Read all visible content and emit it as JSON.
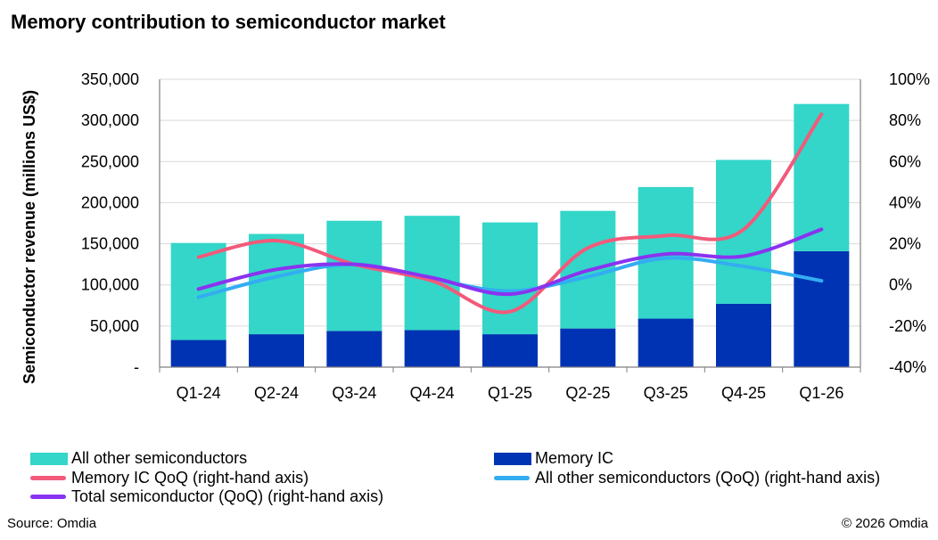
{
  "title": "Memory contribution to semiconductor market",
  "source": "Source: Omdia",
  "copyright": "© 2026 Omdia",
  "colors": {
    "all_other": "#33d6c8",
    "memory_ic": "#0033b3",
    "memory_qoq": "#f25a7a",
    "all_other_qoq": "#33adf2",
    "total_qoq": "#8a33f0",
    "grid": "#d9d9d9",
    "axis": "#808080"
  },
  "chart_data": {
    "type": "bar",
    "stacked": true,
    "ylabel": "Semiconductor revenue (millions US$)",
    "ylim": [
      0,
      350000
    ],
    "y_ticks": [
      0,
      50000,
      100000,
      150000,
      200000,
      250000,
      300000,
      350000
    ],
    "y_tick_labels": [
      "-",
      "50,000",
      "100,000",
      "150,000",
      "200,000",
      "250,000",
      "300,000",
      "350,000"
    ],
    "y2lim": [
      -40,
      100
    ],
    "y2_ticks": [
      -40,
      -20,
      0,
      20,
      40,
      60,
      80,
      100
    ],
    "y2_tick_labels": [
      "-40%",
      "-20%",
      "0%",
      "20%",
      "40%",
      "60%",
      "80%",
      "100%"
    ],
    "grid": true,
    "legend_position": "bottom",
    "categories": [
      "Q1-24",
      "Q2-24",
      "Q3-24",
      "Q4-24",
      "Q1-25",
      "Q2-25",
      "Q3-25",
      "Q4-25",
      "Q1-26"
    ],
    "series": [
      {
        "name": "All other semiconductors",
        "kind": "bar",
        "axis": "left",
        "values": [
          118000,
          122000,
          134000,
          139000,
          136000,
          143000,
          160000,
          175000,
          179000
        ]
      },
      {
        "name": "Memory IC",
        "kind": "bar",
        "axis": "left",
        "values": [
          33000,
          40000,
          44000,
          45000,
          40000,
          47000,
          59000,
          77000,
          141000
        ]
      },
      {
        "name": "Memory IC QoQ (right-hand axis)",
        "kind": "line",
        "axis": "right",
        "values": [
          13.5,
          21.5,
          10,
          2,
          -13,
          18,
          24,
          27,
          83
        ]
      },
      {
        "name": "All other semiconductors (QoQ) (right-hand axis)",
        "kind": "line",
        "axis": "right",
        "values": [
          -6,
          4,
          10,
          3,
          -3,
          4,
          13,
          9,
          2
        ]
      },
      {
        "name": "Total semiconductor (QoQ) (right-hand axis)",
        "kind": "line",
        "axis": "right",
        "values": [
          -2,
          7.5,
          10,
          3.5,
          -4.5,
          7,
          15,
          14,
          27
        ]
      }
    ]
  }
}
